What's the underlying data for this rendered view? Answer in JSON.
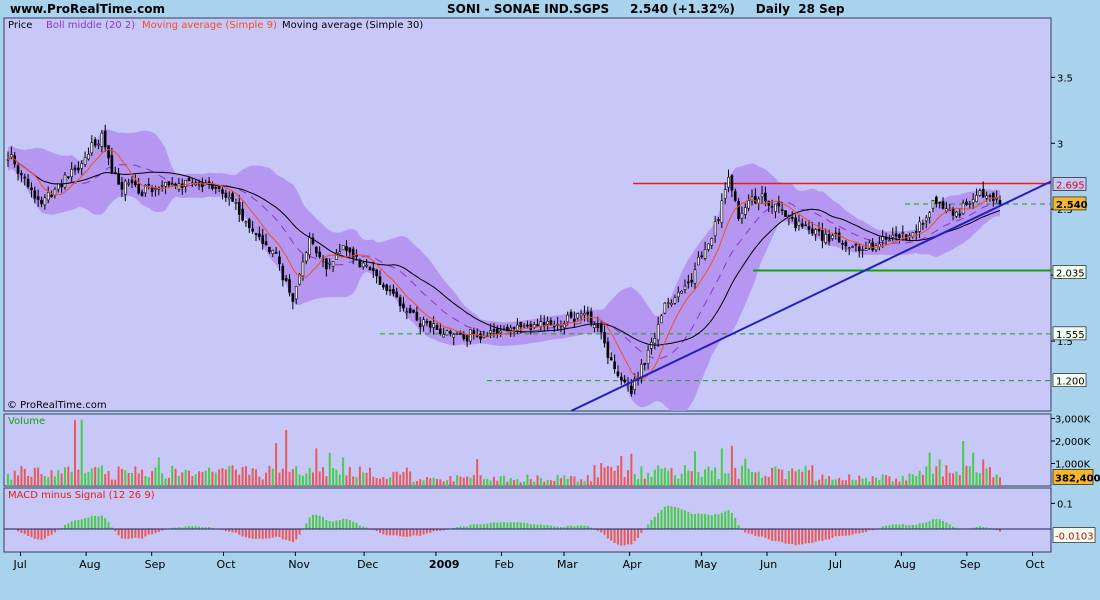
{
  "header": {
    "site": "www.ProRealTime.com",
    "symbol": "SONI - SONAE IND.SGPS",
    "last": "2.540 (+1.32%)",
    "period": "Daily",
    "date": "28 Sep"
  },
  "legend": {
    "price": "Price",
    "boll": "Boll middle (20 2)",
    "ma9": "Moving average (Simple 9)",
    "ma30": "Moving average (Simple 30)"
  },
  "watermark": "© ProRealTime.com",
  "volume_title": "Volume",
  "macd_title": "MACD minus Signal (12 26 9)",
  "colors": {
    "panel_bg": "#c8c8f8",
    "frame_bg": "#a9d2ec",
    "band": "#b28ef0",
    "boll_mid": "#8a36c8",
    "ma9": "#f05020",
    "ma30": "#000000",
    "up": "#49cc49",
    "down": "#e85a5a",
    "resistance": "#e81c1c",
    "support": "#10a010",
    "trend": "#2020c0",
    "dashed": "#18a018",
    "price_badge": "#f6b82a",
    "volume_badge": "#f6b82a"
  },
  "chart_data": [
    {
      "type": "candlestick",
      "name": "price",
      "title": "SONI - SONAE IND.SGPS",
      "y_ticks": [
        1.5,
        2,
        2.5,
        3,
        3.5
      ],
      "y_tick_labels": [
        "1.5",
        "2",
        "2.5",
        "3",
        "3.5"
      ],
      "ylim": [
        0.97,
        3.95
      ],
      "x_tick_labels": [
        "Jul",
        "Aug",
        "Sep",
        "Oct",
        "Nov",
        "Dec",
        "2009",
        "Feb",
        "Mar",
        "Apr",
        "May",
        "Jun",
        "Jul",
        "Aug",
        "Sep",
        "Oct"
      ],
      "close_path": [
        [
          0,
          2.9
        ],
        [
          10,
          2.55
        ],
        [
          20,
          2.8
        ],
        [
          28,
          3.05
        ],
        [
          33,
          2.7
        ],
        [
          40,
          2.65
        ],
        [
          50,
          2.7
        ],
        [
          60,
          2.7
        ],
        [
          65,
          2.62
        ],
        [
          72,
          2.35
        ],
        [
          80,
          2.15
        ],
        [
          85,
          1.8
        ],
        [
          90,
          2.3
        ],
        [
          95,
          2.05
        ],
        [
          100,
          2.2
        ],
        [
          108,
          2.05
        ],
        [
          115,
          1.85
        ],
        [
          122,
          1.65
        ],
        [
          130,
          1.58
        ],
        [
          140,
          1.52
        ],
        [
          150,
          1.6
        ],
        [
          160,
          1.62
        ],
        [
          165,
          1.6
        ],
        [
          170,
          1.7
        ],
        [
          175,
          1.64
        ],
        [
          182,
          1.25
        ],
        [
          186,
          1.15
        ],
        [
          190,
          1.35
        ],
        [
          196,
          1.75
        ],
        [
          203,
          1.95
        ],
        [
          210,
          2.3
        ],
        [
          215,
          2.75
        ],
        [
          218,
          2.45
        ],
        [
          222,
          2.6
        ],
        [
          230,
          2.5
        ],
        [
          240,
          2.35
        ],
        [
          250,
          2.25
        ],
        [
          255,
          2.2
        ],
        [
          260,
          2.25
        ],
        [
          268,
          2.3
        ],
        [
          273,
          2.4
        ],
        [
          276,
          2.55
        ],
        [
          282,
          2.48
        ],
        [
          288,
          2.55
        ],
        [
          291,
          2.63
        ],
        [
          296,
          2.54
        ]
      ],
      "lines": [
        {
          "name": "resistance",
          "value": 2.695,
          "label": "2.695"
        },
        {
          "name": "support",
          "value": 2.035,
          "label": "2.035"
        }
      ],
      "dashed_levels": [
        {
          "value": 2.54,
          "label": "2.540"
        },
        {
          "value": 1.555,
          "label": "1.555"
        },
        {
          "value": 1.2,
          "label": "1.200"
        }
      ],
      "trendline": {
        "from": [
          168,
          0.97
        ],
        "to": [
          312,
          2.72
        ]
      },
      "last_value": "2.540"
    },
    {
      "type": "bar",
      "name": "volume",
      "y_ticks": [
        1000,
        2000,
        3000
      ],
      "y_tick_labels": [
        "1,000K",
        "2,000K",
        "3,000K"
      ],
      "ylim": [
        0,
        3200
      ],
      "last_value": "382,400"
    },
    {
      "type": "bar",
      "name": "macd_minus_signal",
      "y_ticks": [
        0.1
      ],
      "y_tick_labels": [
        "0.1"
      ],
      "ylim": [
        -0.09,
        0.16
      ],
      "last_value": "-0.0103"
    }
  ]
}
